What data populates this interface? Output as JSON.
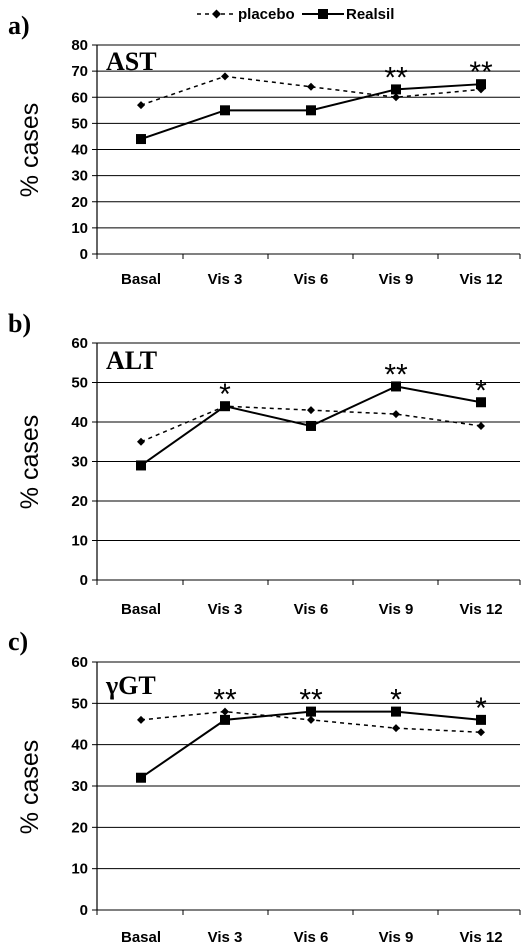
{
  "legend": {
    "placebo": "placebo",
    "realsil": "Realsil"
  },
  "colors": {
    "line": "#000000",
    "grid": "#000000"
  },
  "chart_data": [
    {
      "type": "line",
      "panel_label": "a)",
      "title": "AST",
      "ylabel": "% cases",
      "ylim": [
        0,
        80
      ],
      "yticks": [
        0,
        10,
        20,
        30,
        40,
        50,
        60,
        70,
        80
      ],
      "categories": [
        "Basal",
        "Vis 3",
        "Vis 6",
        "Vis 9",
        "Vis 12"
      ],
      "series": [
        {
          "name": "placebo",
          "values": [
            57,
            68,
            64,
            60,
            63
          ]
        },
        {
          "name": "Realsil",
          "values": [
            44,
            55,
            55,
            63,
            65
          ]
        }
      ],
      "annotations": [
        "",
        "",
        "",
        "**",
        "**"
      ]
    },
    {
      "type": "line",
      "panel_label": "b)",
      "title": "ALT",
      "ylabel": "% cases",
      "ylim": [
        0,
        60
      ],
      "yticks": [
        0,
        10,
        20,
        30,
        40,
        50,
        60
      ],
      "categories": [
        "Basal",
        "Vis 3",
        "Vis 6",
        "Vis 9",
        "Vis 12"
      ],
      "series": [
        {
          "name": "placebo",
          "values": [
            35,
            44,
            43,
            42,
            39
          ]
        },
        {
          "name": "Realsil",
          "values": [
            29,
            44,
            39,
            49,
            45
          ]
        }
      ],
      "annotations": [
        "",
        "*",
        "",
        "**",
        "*"
      ]
    },
    {
      "type": "line",
      "panel_label": "c)",
      "title": "γGT",
      "ylabel": "% cases",
      "ylim": [
        0,
        60
      ],
      "yticks": [
        0,
        10,
        20,
        30,
        40,
        50,
        60
      ],
      "categories": [
        "Basal",
        "Vis 3",
        "Vis 6",
        "Vis 9",
        "Vis 12"
      ],
      "series": [
        {
          "name": "placebo",
          "values": [
            46,
            48,
            46,
            44,
            43
          ]
        },
        {
          "name": "Realsil",
          "values": [
            32,
            46,
            48,
            48,
            46
          ]
        }
      ],
      "annotations": [
        "",
        "**",
        "**",
        "*",
        "*"
      ]
    }
  ]
}
